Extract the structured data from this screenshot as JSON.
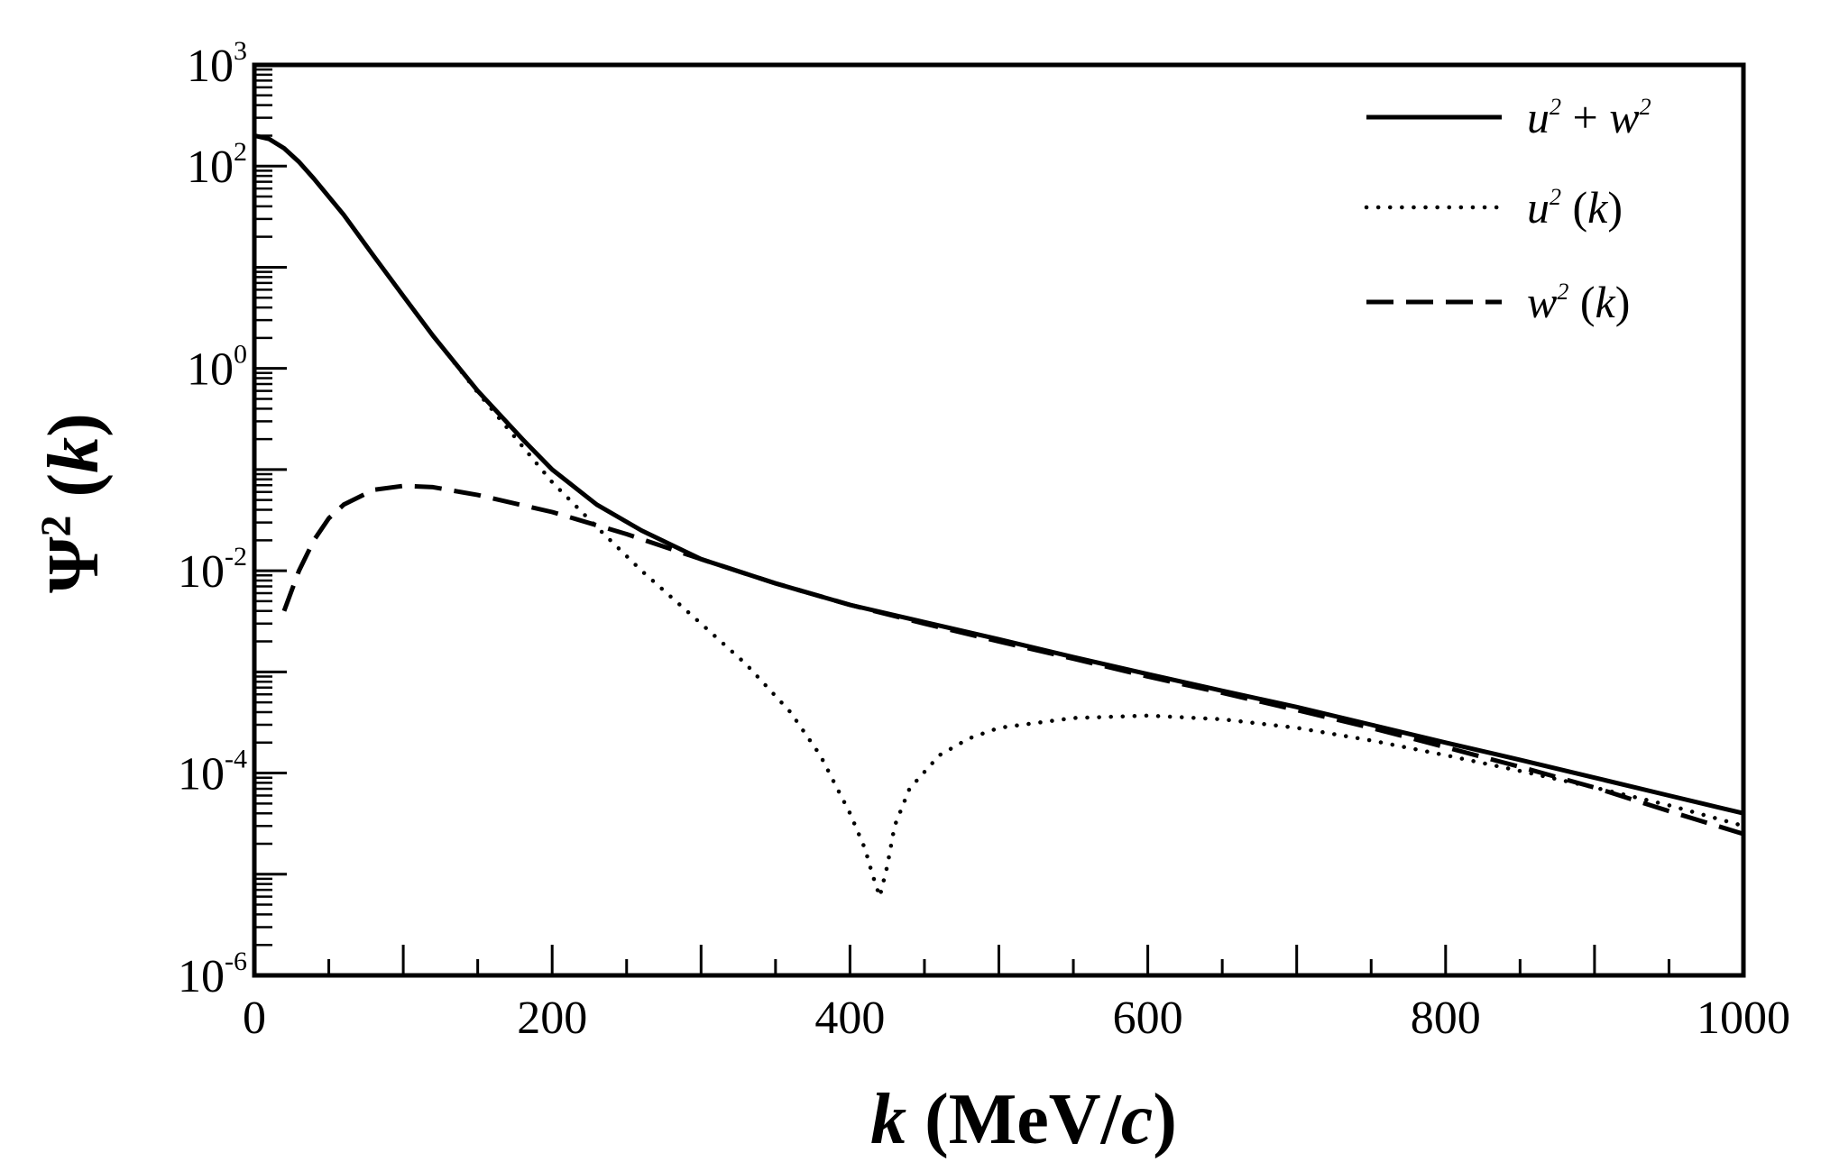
{
  "chart_data": {
    "type": "line",
    "x_scale": "linear",
    "y_scale": "log",
    "xlabel": {
      "var": "k",
      "unit_prefix": " (MeV/",
      "unit_var": "c",
      "unit_suffix": ")"
    },
    "ylabel": {
      "symbol": "Ψ",
      "exponent": "2",
      "open": " (",
      "var": "k",
      "close": ")"
    },
    "xlim": [
      0,
      1000
    ],
    "ylim": [
      1e-06,
      1000
    ],
    "x_ticks": [
      "0",
      "200",
      "400",
      "600",
      "800",
      "1000"
    ],
    "x_tick_values": [
      0,
      200,
      400,
      600,
      800,
      1000
    ],
    "y_ticks": [
      {
        "base": "10",
        "exp": "-6",
        "value": 1e-06
      },
      {
        "base": "10",
        "exp": "-4",
        "value": 0.0001
      },
      {
        "base": "10",
        "exp": "-2",
        "value": 0.01
      },
      {
        "base": "10",
        "exp": "0",
        "value": 1
      },
      {
        "base": "10",
        "exp": "2",
        "value": 100
      },
      {
        "base": "10",
        "exp": "3",
        "value": 1000
      }
    ],
    "legend_position": "top-right",
    "series": [
      {
        "name": "u² + w²",
        "legend": {
          "a": "u",
          "a_sup": "2",
          "mid": " + ",
          "b": "w",
          "b_sup": "2",
          "tail": ""
        },
        "style": "solid",
        "x": [
          0,
          10,
          20,
          30,
          40,
          60,
          80,
          100,
          120,
          150,
          180,
          200,
          230,
          260,
          300,
          350,
          400,
          450,
          500,
          550,
          600,
          650,
          700,
          750,
          800,
          850,
          900,
          950,
          1000
        ],
        "y": [
          200,
          185,
          150,
          110,
          75,
          33,
          13,
          5.2,
          2.1,
          0.6,
          0.2,
          0.1,
          0.045,
          0.025,
          0.013,
          0.0075,
          0.0046,
          0.0031,
          0.0021,
          0.0014,
          0.00095,
          0.00065,
          0.00045,
          0.0003,
          0.0002,
          0.000135,
          9e-05,
          6e-05,
          4e-05
        ]
      },
      {
        "name": "u² (k)",
        "legend": {
          "a": "u",
          "a_sup": "2",
          "mid": " (",
          "b": "k",
          "b_sup": "",
          "tail": ")"
        },
        "style": "dotted",
        "x": [
          0,
          10,
          20,
          30,
          40,
          60,
          80,
          100,
          120,
          150,
          180,
          200,
          230,
          260,
          300,
          330,
          360,
          380,
          400,
          410,
          415,
          420,
          425,
          430,
          440,
          460,
          480,
          500,
          550,
          600,
          650,
          700,
          750,
          800,
          850,
          900,
          950,
          1000
        ],
        "y": [
          200,
          185,
          150,
          110,
          75,
          33,
          13,
          5.2,
          2.1,
          0.58,
          0.17,
          0.075,
          0.027,
          0.01,
          0.003,
          0.0012,
          0.0004,
          0.00015,
          4e-05,
          1.8e-05,
          1e-05,
          6e-06,
          1.2e-05,
          3e-05,
          7e-05,
          0.00015,
          0.00022,
          0.00028,
          0.00035,
          0.00037,
          0.00034,
          0.00028,
          0.00021,
          0.00015,
          0.000105,
          7.2e-05,
          4.8e-05,
          3e-05
        ]
      },
      {
        "name": "w² (k)",
        "legend": {
          "a": "w",
          "a_sup": "2",
          "mid": " (",
          "b": "k",
          "b_sup": "",
          "tail": ")"
        },
        "style": "dashed",
        "x": [
          20,
          30,
          40,
          50,
          60,
          80,
          100,
          120,
          150,
          200,
          250,
          300,
          350,
          400,
          450,
          500,
          550,
          600,
          650,
          700,
          750,
          800,
          850,
          900,
          950,
          1000
        ],
        "y": [
          0.004,
          0.01,
          0.02,
          0.033,
          0.045,
          0.063,
          0.069,
          0.067,
          0.056,
          0.038,
          0.023,
          0.013,
          0.0075,
          0.0046,
          0.003,
          0.002,
          0.00135,
          0.0009,
          0.00062,
          0.00042,
          0.00028,
          0.00018,
          0.000115,
          7.2e-05,
          4.2e-05,
          2.5e-05
        ]
      }
    ]
  }
}
